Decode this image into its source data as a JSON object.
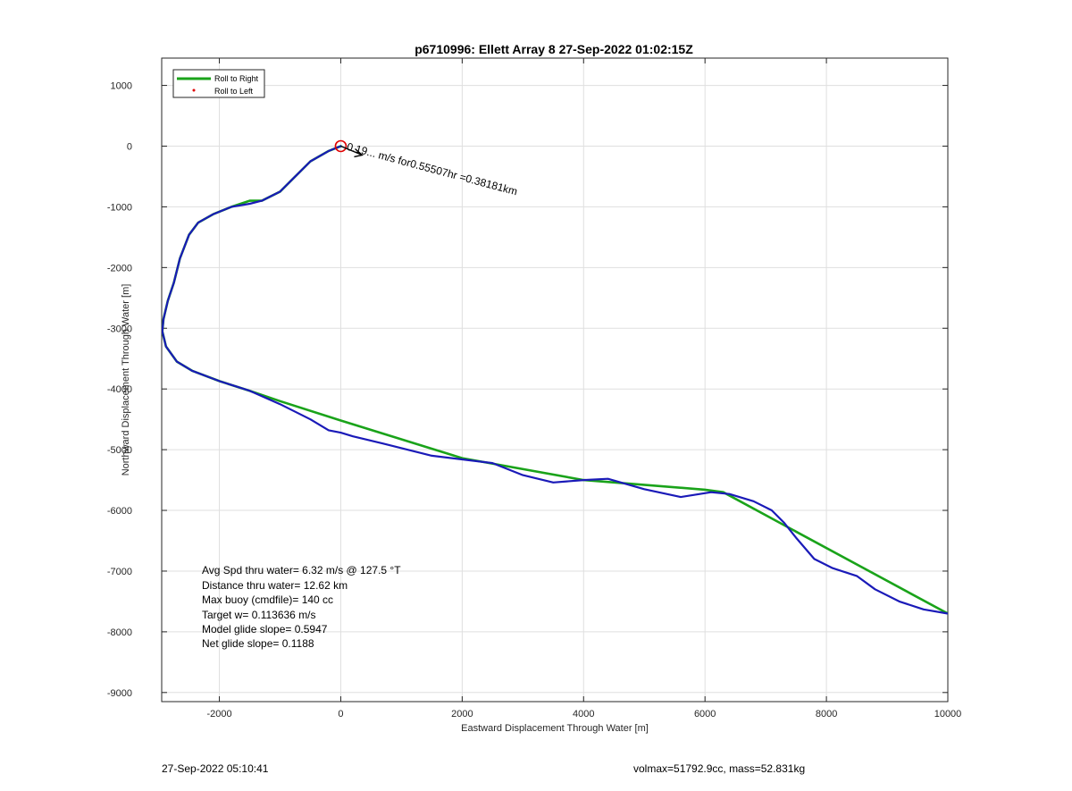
{
  "chart_data": {
    "type": "line",
    "title": "p6710996: Ellett Array 8 27-Sep-2022 01:02:15Z",
    "xlabel": "Eastward Displacement Through Water [m]",
    "ylabel": "Northward Displacement Through Water [m]",
    "xlim": [
      -2950,
      10000
    ],
    "ylim": [
      -9150,
      1450
    ],
    "xticks": [
      -2000,
      0,
      2000,
      4000,
      6000,
      8000,
      10000
    ],
    "yticks": [
      1000,
      0,
      -1000,
      -2000,
      -3000,
      -4000,
      -5000,
      -6000,
      -7000,
      -8000,
      -9000
    ],
    "grid": true,
    "legend_position": "top-left",
    "legend": [
      "Roll to Right",
      "Roll to Left"
    ],
    "series": [
      {
        "name": "Roll to Right",
        "color": "#1aa31a",
        "x": [
          0,
          -200,
          -500,
          -800,
          -1000,
          -1300,
          -1500,
          -1800,
          -2100,
          -2350,
          -2500,
          -2650,
          -2750,
          -2850,
          -2920,
          -2940,
          -2880,
          -2700,
          -2450,
          -2000,
          -1500,
          -1000,
          0,
          2000,
          4000,
          6000,
          6300,
          7500,
          10000
        ],
        "y": [
          0,
          -80,
          -250,
          -550,
          -750,
          -900,
          -900,
          -1000,
          -1120,
          -1260,
          -1460,
          -1850,
          -2250,
          -2550,
          -2850,
          -3050,
          -3300,
          -3550,
          -3700,
          -3870,
          -4030,
          -4200,
          -4520,
          -5140,
          -5500,
          -5660,
          -5700,
          -6350,
          -7700
        ]
      },
      {
        "name": "Roll to Left",
        "color": "#1a1ab8",
        "x": [
          0,
          -200,
          -500,
          -800,
          -1000,
          -1300,
          -1500,
          -1800,
          -2100,
          -2350,
          -2500,
          -2650,
          -2750,
          -2850,
          -2920,
          -2940,
          -2880,
          -2700,
          -2450,
          -2000,
          -1500,
          -1000,
          -500,
          -200,
          0,
          200,
          700,
          1500,
          2500,
          3000,
          3500,
          4000,
          4400,
          5000,
          5600,
          6100,
          6400,
          6800,
          7100,
          7300,
          7500,
          7800,
          8100,
          8500,
          8800,
          9200,
          9600,
          10000
        ],
        "y": [
          0,
          -80,
          -250,
          -550,
          -750,
          -900,
          -950,
          -1000,
          -1120,
          -1260,
          -1460,
          -1850,
          -2250,
          -2550,
          -2850,
          -3050,
          -3300,
          -3550,
          -3700,
          -3870,
          -4030,
          -4250,
          -4500,
          -4680,
          -4720,
          -4780,
          -4900,
          -5100,
          -5220,
          -5420,
          -5540,
          -5500,
          -5480,
          -5650,
          -5780,
          -5700,
          -5730,
          -5850,
          -6000,
          -6200,
          -6450,
          -6800,
          -6950,
          -7080,
          -7300,
          -7500,
          -7630,
          -7700
        ]
      }
    ],
    "marker": {
      "x": 0,
      "y": 0,
      "shape": "circle",
      "color": "#e00000"
    },
    "annotations": {
      "current": "0.19... m/s for0.55507hr =0.38181km"
    },
    "stats": [
      "Avg Spd thru water=  6.32 m/s @ 127.5 °T",
      "Distance thru water= 12.62 km",
      "Max buoy (cmdfile)= 140 cc",
      "Target w= 0.113636 m/s",
      "Model glide slope= 0.5947",
      "Net glide slope= 0.1188"
    ]
  },
  "footer": {
    "timestamp": "27-Sep-2022 05:10:41",
    "info": "volmax=51792.9cc, mass=52.831kg"
  }
}
